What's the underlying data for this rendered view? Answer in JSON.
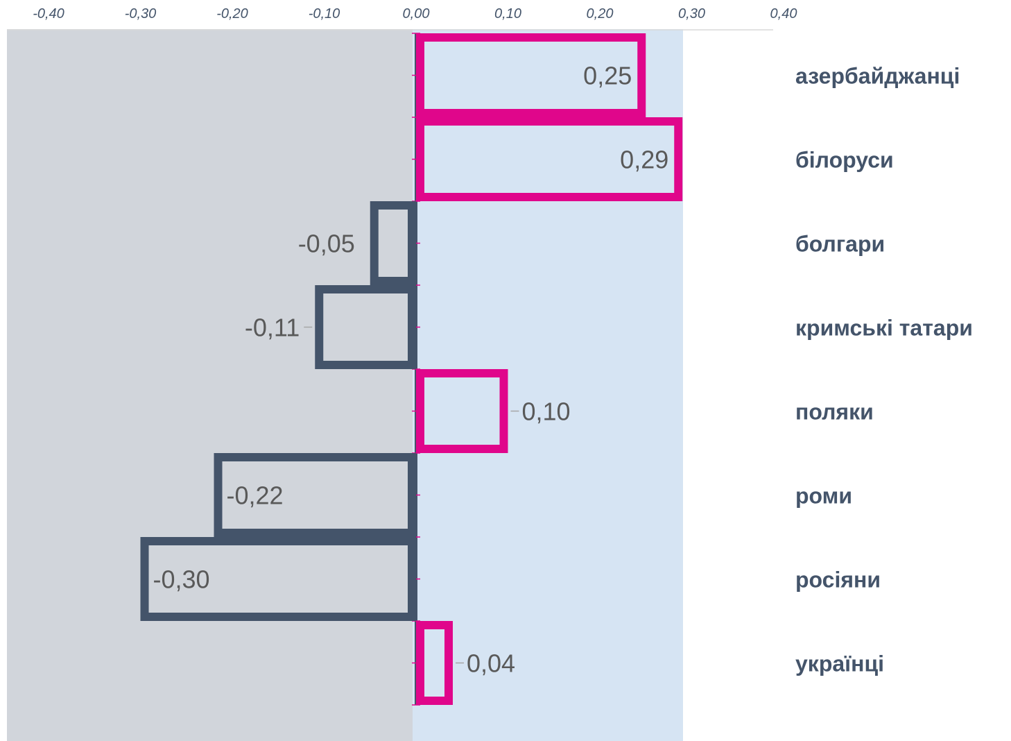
{
  "chart_data": {
    "type": "bar",
    "orientation": "horizontal",
    "categories": [
      "азербайджанці",
      "білоруси",
      "болгари",
      "кримські татари",
      "поляки",
      "роми",
      "росіяни",
      "українці"
    ],
    "values": [
      0.25,
      0.29,
      -0.05,
      -0.11,
      0.1,
      -0.22,
      -0.3,
      0.04
    ],
    "value_labels": [
      "0,25",
      "0,29",
      "-0,05",
      "-0,11",
      "0,10",
      "-0,22",
      "-0,30",
      "0,04"
    ],
    "xlim": [
      -0.4,
      0.4
    ],
    "x_ticks": [
      -0.4,
      -0.3,
      -0.2,
      -0.1,
      0.0,
      0.1,
      0.2,
      0.3,
      0.4
    ],
    "x_tick_labels": [
      "-0,40",
      "-0,30",
      "-0,20",
      "-0,10",
      "0,00",
      "0,10",
      "0,20",
      "0,30",
      "0,40"
    ],
    "x_axis_position": "top",
    "category_labels_position": "right",
    "grid": false,
    "legend": false,
    "colors": {
      "positive": "#e0068b",
      "negative": "#44546a",
      "negative_background": "#d1d5db",
      "positive_background": "#d6e4f3",
      "tick_text": "#44546a",
      "value_text": "#595959",
      "category_text": "#44546a"
    }
  }
}
